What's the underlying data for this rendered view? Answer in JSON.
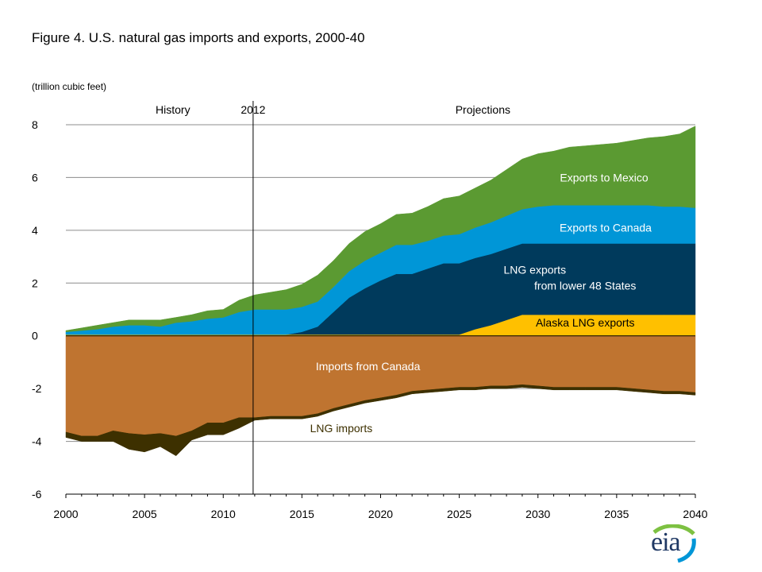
{
  "header": {
    "title": "Figure 4. U.S. natural gas imports and exports, 2000-40",
    "units": "(trillion cubic feet)"
  },
  "logo": {
    "text": "eia"
  },
  "chart_data": {
    "type": "area",
    "title": "Figure 4. U.S. natural gas imports and exports, 2000-40",
    "ylabel": "(trillion cubic feet)",
    "xlabel": "",
    "xlim": [
      2000,
      2040
    ],
    "ylim": [
      -6,
      8
    ],
    "x_ticks": [
      "2000",
      "2005",
      "2010",
      "2015",
      "2020",
      "2025",
      "2030",
      "2035",
      "2040"
    ],
    "y_ticks": [
      "8",
      "6",
      "4",
      "2",
      "0",
      "-2",
      "-4",
      "-6"
    ],
    "grid": "horizontal",
    "divider": {
      "x": 2012,
      "label": "2012",
      "left_label": "History",
      "right_label": "Projections"
    },
    "x": [
      2000,
      2001,
      2002,
      2003,
      2004,
      2005,
      2006,
      2007,
      2008,
      2009,
      2010,
      2011,
      2012,
      2013,
      2014,
      2015,
      2016,
      2017,
      2018,
      2019,
      2020,
      2021,
      2022,
      2023,
      2024,
      2025,
      2026,
      2027,
      2028,
      2029,
      2030,
      2031,
      2032,
      2033,
      2034,
      2035,
      2036,
      2037,
      2038,
      2039,
      2040
    ],
    "export_series": [
      {
        "name": "Alaska LNG exports",
        "color": "#ffc000",
        "values": [
          0.05,
          0.05,
          0.05,
          0.05,
          0.05,
          0.05,
          0.05,
          0.05,
          0.05,
          0.05,
          0.05,
          0.05,
          0.05,
          0.05,
          0.05,
          0.05,
          0.05,
          0.05,
          0.05,
          0.05,
          0.05,
          0.05,
          0.05,
          0.05,
          0.05,
          0.05,
          0.25,
          0.4,
          0.6,
          0.8,
          0.8,
          0.8,
          0.8,
          0.8,
          0.8,
          0.8,
          0.8,
          0.8,
          0.8,
          0.8,
          0.8
        ]
      },
      {
        "name": "LNG exports from lower 48 States",
        "color": "#003a5c",
        "values": [
          0,
          0,
          0,
          0,
          0,
          0,
          0,
          0,
          0,
          0,
          0,
          0,
          0,
          0,
          0,
          0.1,
          0.3,
          0.85,
          1.4,
          1.75,
          2.05,
          2.3,
          2.3,
          2.5,
          2.7,
          2.7,
          2.7,
          2.7,
          2.7,
          2.7,
          2.7,
          2.7,
          2.7,
          2.7,
          2.7,
          2.7,
          2.7,
          2.7,
          2.7,
          2.7,
          2.7
        ]
      },
      {
        "name": "Exports to Canada",
        "color": "#0096d7",
        "values": [
          0.1,
          0.15,
          0.2,
          0.3,
          0.35,
          0.35,
          0.3,
          0.45,
          0.5,
          0.6,
          0.65,
          0.85,
          0.95,
          0.95,
          0.95,
          0.95,
          0.95,
          0.95,
          1.0,
          1.05,
          1.05,
          1.1,
          1.1,
          1.05,
          1.05,
          1.1,
          1.15,
          1.2,
          1.25,
          1.3,
          1.4,
          1.45,
          1.45,
          1.45,
          1.45,
          1.45,
          1.45,
          1.45,
          1.4,
          1.4,
          1.35
        ]
      },
      {
        "name": "Exports to Mexico",
        "color": "#5b9a32",
        "values": [
          0.05,
          0.1,
          0.15,
          0.15,
          0.2,
          0.2,
          0.25,
          0.2,
          0.25,
          0.3,
          0.3,
          0.45,
          0.55,
          0.65,
          0.75,
          0.85,
          1.0,
          1.0,
          1.05,
          1.1,
          1.1,
          1.15,
          1.2,
          1.3,
          1.4,
          1.45,
          1.5,
          1.6,
          1.75,
          1.9,
          2.0,
          2.05,
          2.2,
          2.25,
          2.3,
          2.35,
          2.45,
          2.55,
          2.65,
          2.75,
          3.1
        ]
      }
    ],
    "import_series": [
      {
        "name": "Imports from Canada",
        "color": "#bf7430",
        "values": [
          3.65,
          3.8,
          3.8,
          3.6,
          3.7,
          3.75,
          3.7,
          3.8,
          3.6,
          3.3,
          3.3,
          3.1,
          3.1,
          3.05,
          3.05,
          3.05,
          2.95,
          2.75,
          2.6,
          2.45,
          2.35,
          2.25,
          2.1,
          2.05,
          2.0,
          1.95,
          1.95,
          1.9,
          1.9,
          1.85,
          1.9,
          1.95,
          1.95,
          1.95,
          1.95,
          1.95,
          2.0,
          2.05,
          2.1,
          2.1,
          2.15
        ]
      },
      {
        "name": "LNG imports",
        "color": "#3d3000",
        "values": [
          0.2,
          0.2,
          0.2,
          0.4,
          0.6,
          0.65,
          0.5,
          0.75,
          0.35,
          0.45,
          0.45,
          0.4,
          0.1,
          0.1,
          0.1,
          0.1,
          0.1,
          0.1,
          0.1,
          0.1,
          0.1,
          0.1,
          0.1,
          0.1,
          0.1,
          0.1,
          0.1,
          0.1,
          0.1,
          0.1,
          0.1,
          0.1,
          0.1,
          0.1,
          0.1,
          0.1,
          0.1,
          0.1,
          0.1,
          0.1,
          0.1
        ]
      }
    ],
    "band_labels": [
      {
        "text": "Exports to Mexico",
        "color": "#ffffff"
      },
      {
        "text": "Exports to Canada",
        "color": "#ffffff"
      },
      {
        "text": "LNG exports",
        "color": "#ffffff"
      },
      {
        "text": "from lower 48 States",
        "color": "#ffffff"
      },
      {
        "text": "Alaska LNG exports",
        "color": "#000000"
      },
      {
        "text": "Imports from Canada",
        "color": "#ffffff"
      },
      {
        "text": "LNG imports",
        "color": "#3d3000"
      }
    ]
  }
}
